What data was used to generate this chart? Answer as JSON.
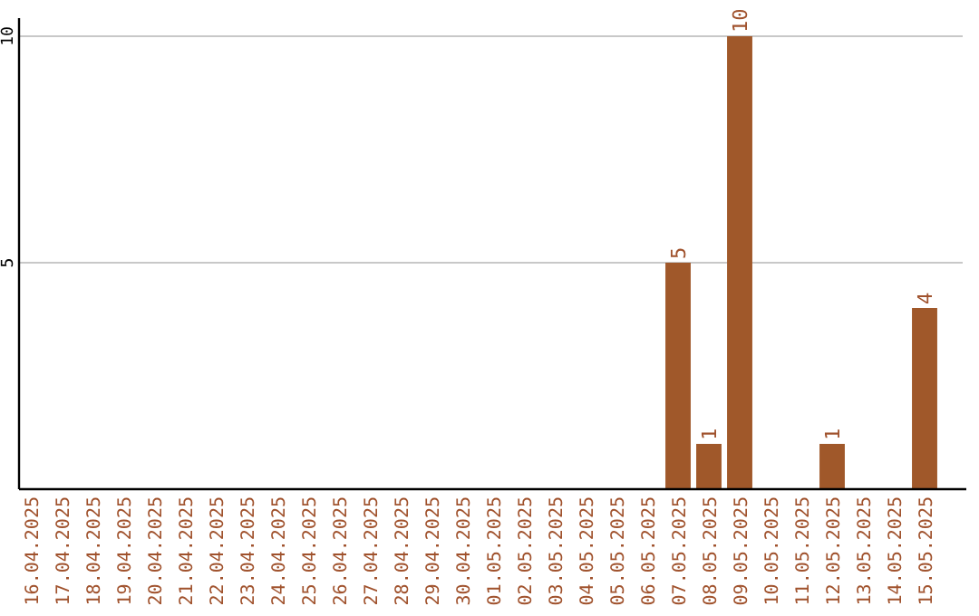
{
  "chart_data": {
    "type": "bar",
    "categories": [
      "16.04.2025",
      "17.04.2025",
      "18.04.2025",
      "19.04.2025",
      "20.04.2025",
      "21.04.2025",
      "22.04.2025",
      "23.04.2025",
      "24.04.2025",
      "25.04.2025",
      "26.04.2025",
      "27.04.2025",
      "28.04.2025",
      "29.04.2025",
      "30.04.2025",
      "01.05.2025",
      "02.05.2025",
      "03.05.2025",
      "04.05.2025",
      "05.05.2025",
      "06.05.2025",
      "07.05.2025",
      "08.05.2025",
      "09.05.2025",
      "10.05.2025",
      "11.05.2025",
      "12.05.2025",
      "13.05.2025",
      "14.05.2025",
      "15.05.2025"
    ],
    "values": [
      0,
      0,
      0,
      0,
      0,
      0,
      0,
      0,
      0,
      0,
      0,
      0,
      0,
      0,
      0,
      0,
      0,
      0,
      0,
      0,
      0,
      5,
      1,
      10,
      0,
      0,
      1,
      0,
      0,
      4
    ],
    "value_labels": [
      null,
      null,
      null,
      null,
      null,
      null,
      null,
      null,
      null,
      null,
      null,
      null,
      null,
      null,
      null,
      null,
      null,
      null,
      null,
      null,
      null,
      "5",
      "1",
      "10",
      null,
      null,
      "1",
      null,
      null,
      "4"
    ],
    "color": "#a0582a",
    "ylim": [
      0,
      10
    ],
    "yticks": [
      5,
      10
    ],
    "grid": "y"
  }
}
